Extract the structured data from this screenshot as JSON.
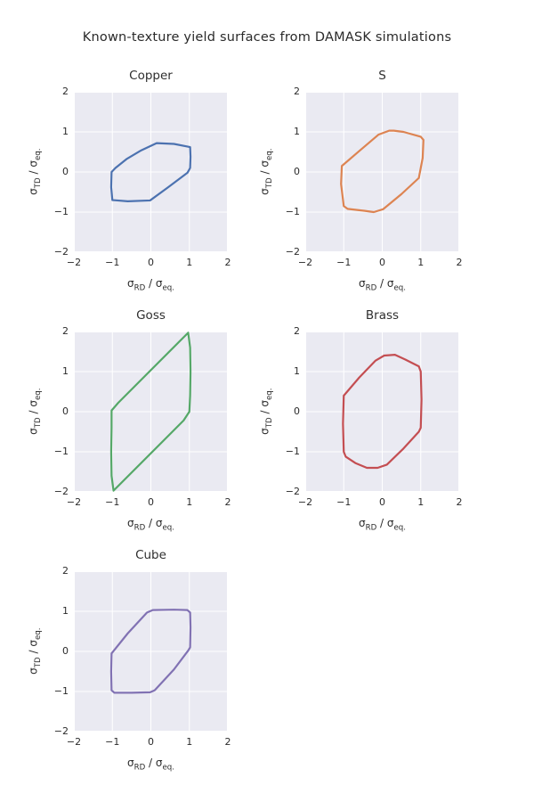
{
  "figure": {
    "title": "Known-texture yield surfaces from DAMASK simulations"
  },
  "style": {
    "plot_bg": "#eaeaf2",
    "grid_color": "#ffffff",
    "text_color": "#2b2b2b",
    "line_width": 2.2
  },
  "axes": {
    "xlabel_parts": {
      "sym": "σ",
      "sub": "RD",
      "mid": " / ",
      "sym2": "σ",
      "sub2": "eq."
    },
    "ylabel_parts": {
      "sym": "σ",
      "sub": "TD",
      "mid": " / ",
      "sym2": "σ",
      "sub2": "eq."
    },
    "xticks": [
      -2,
      -1,
      0,
      1,
      2
    ],
    "yticks": [
      2,
      1,
      0,
      -1,
      -2
    ],
    "xtick_labels": [
      "−2",
      "−1",
      "0",
      "1",
      "2"
    ],
    "ytick_labels": [
      "2",
      "1",
      "0",
      "−1",
      "−2"
    ],
    "xlim": [
      -2,
      2
    ],
    "ylim": [
      -2,
      2
    ],
    "grid": true
  },
  "chart_data": [
    {
      "type": "line",
      "title": "Copper",
      "color": "#4c72b0",
      "closed": true,
      "xlabel": "σ_RD / σ_eq.",
      "ylabel": "σ_TD / σ_eq.",
      "xlim": [
        -2,
        2
      ],
      "ylim": [
        -2,
        2
      ],
      "x": [
        -1.02,
        -1.03,
        -1.0,
        -0.6,
        -0.02,
        0.45,
        0.95,
        1.02,
        1.03,
        1.02,
        0.6,
        0.15,
        -0.25,
        -0.62,
        -0.92,
        -1.02
      ],
      "y": [
        0.0,
        -0.38,
        -0.7,
        -0.73,
        -0.71,
        -0.38,
        -0.02,
        0.1,
        0.38,
        0.62,
        0.7,
        0.72,
        0.54,
        0.33,
        0.1,
        0.0
      ]
    },
    {
      "type": "line",
      "title": "S",
      "color": "#dd8452",
      "closed": true,
      "xlabel": "σ_RD / σ_eq.",
      "ylabel": "σ_TD / σ_eq.",
      "xlim": [
        -2,
        2
      ],
      "ylim": [
        -2,
        2
      ],
      "x": [
        -1.05,
        -0.6,
        -0.1,
        0.18,
        0.3,
        0.55,
        1.0,
        1.07,
        1.05,
        0.95,
        0.5,
        0.02,
        -0.22,
        -0.45,
        -0.9,
        -1.0,
        -1.07,
        -1.05
      ],
      "y": [
        0.15,
        0.52,
        0.93,
        1.03,
        1.03,
        1.0,
        0.88,
        0.8,
        0.35,
        -0.15,
        -0.55,
        -0.93,
        -1.0,
        -0.97,
        -0.92,
        -0.85,
        -0.3,
        0.15
      ]
    },
    {
      "type": "line",
      "title": "Goss",
      "color": "#55a868",
      "closed": true,
      "xlabel": "σ_RD / σ_eq.",
      "ylabel": "σ_TD / σ_eq.",
      "xlim": [
        -2,
        2
      ],
      "ylim": [
        -2,
        2
      ],
      "x": [
        -1.02,
        -0.85,
        0.97,
        1.02,
        1.03,
        1.02,
        1.0,
        0.85,
        -0.97,
        -1.02,
        -1.03,
        -1.02,
        -1.02
      ],
      "y": [
        0.03,
        0.22,
        1.97,
        1.6,
        1.0,
        0.4,
        0.0,
        -0.22,
        -1.97,
        -1.6,
        -1.0,
        -0.4,
        0.03
      ]
    },
    {
      "type": "line",
      "title": "Brass",
      "color": "#c44e52",
      "closed": true,
      "xlabel": "σ_RD / σ_eq.",
      "ylabel": "σ_TD / σ_eq.",
      "xlim": [
        -2,
        2
      ],
      "ylim": [
        -2,
        2
      ],
      "x": [
        -1.0,
        -0.6,
        -0.18,
        0.05,
        0.33,
        0.6,
        0.95,
        1.0,
        1.02,
        1.0,
        0.95,
        0.55,
        0.12,
        -0.12,
        -0.4,
        -0.7,
        -0.95,
        -1.0,
        -1.02,
        -1.0
      ],
      "y": [
        0.4,
        0.85,
        1.27,
        1.4,
        1.42,
        1.3,
        1.13,
        1.0,
        0.3,
        -0.4,
        -0.5,
        -0.92,
        -1.32,
        -1.4,
        -1.4,
        -1.28,
        -1.12,
        -1.0,
        -0.3,
        0.4
      ]
    },
    {
      "type": "line",
      "title": "Cube",
      "color": "#8172b3",
      "closed": true,
      "xlabel": "σ_RD / σ_eq.",
      "ylabel": "σ_TD / σ_eq.",
      "xlim": [
        -2,
        2
      ],
      "ylim": [
        -2,
        2
      ],
      "x": [
        0.05,
        0.6,
        0.95,
        1.02,
        1.03,
        1.02,
        0.97,
        0.6,
        0.1,
        -0.02,
        -0.5,
        -0.95,
        -1.02,
        -1.03,
        -1.02,
        -0.6,
        -0.1,
        0.05
      ],
      "y": [
        1.03,
        1.04,
        1.03,
        0.97,
        0.6,
        0.1,
        0.02,
        -0.45,
        -0.97,
        -1.02,
        -1.03,
        -1.03,
        -0.97,
        -0.5,
        -0.05,
        0.45,
        0.97,
        1.03
      ]
    }
  ]
}
